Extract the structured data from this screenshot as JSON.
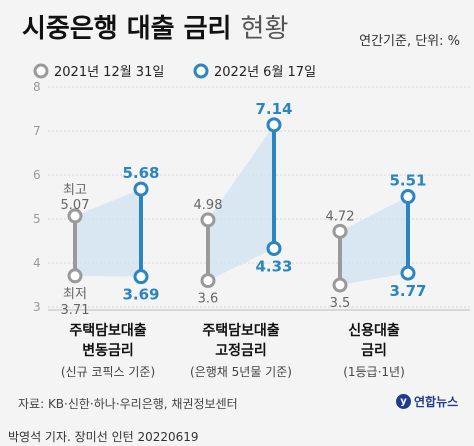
{
  "title_main": "시중은행 대출 금리",
  "title_sub": "현황",
  "unit": "연간기준, 단위: %",
  "source": "자료: KB·신한·하나·우리은행, 채권정보센터",
  "credit": "박영석 기자. 장미선 인턴  20220619",
  "logo": "연합뉴스",
  "colors": {
    "old": "#9a9a9a",
    "new": "#2a85c2",
    "band": "#cfe3f2"
  },
  "chart_data": {
    "type": "dumbbell",
    "legend": [
      "2021년 12월 31일",
      "2022년 6월 17일"
    ],
    "ylim": [
      3,
      8
    ],
    "yticks": [
      3,
      4,
      5,
      6,
      7,
      8
    ],
    "annotations": {
      "high": "최고",
      "low": "최저"
    },
    "groups": [
      {
        "label1": "주택담보대출",
        "label2": "변동금리",
        "note": "(신규 코픽스 기준)",
        "old_high": 5.07,
        "old_low": 3.71,
        "new_high": 5.68,
        "new_low": 3.69,
        "old_high_label": "5.07",
        "old_low_label": "3.71",
        "new_high_label": "5.68",
        "new_low_label": "3.69"
      },
      {
        "label1": "주택담보대출",
        "label2": "고정금리",
        "note": "(은행채 5년물 기준)",
        "old_high": 4.98,
        "old_low": 3.6,
        "new_high": 7.14,
        "new_low": 4.33,
        "old_high_label": "4.98",
        "old_low_label": "3.6",
        "new_high_label": "7.14",
        "new_low_label": "4.33"
      },
      {
        "label1": "신용대출",
        "label2": "금리",
        "note": "(1등급·1년)",
        "old_high": 4.72,
        "old_low": 3.5,
        "new_high": 5.51,
        "new_low": 3.77,
        "old_high_label": "4.72",
        "old_low_label": "3.5",
        "new_high_label": "5.51",
        "new_low_label": "3.77"
      }
    ]
  }
}
